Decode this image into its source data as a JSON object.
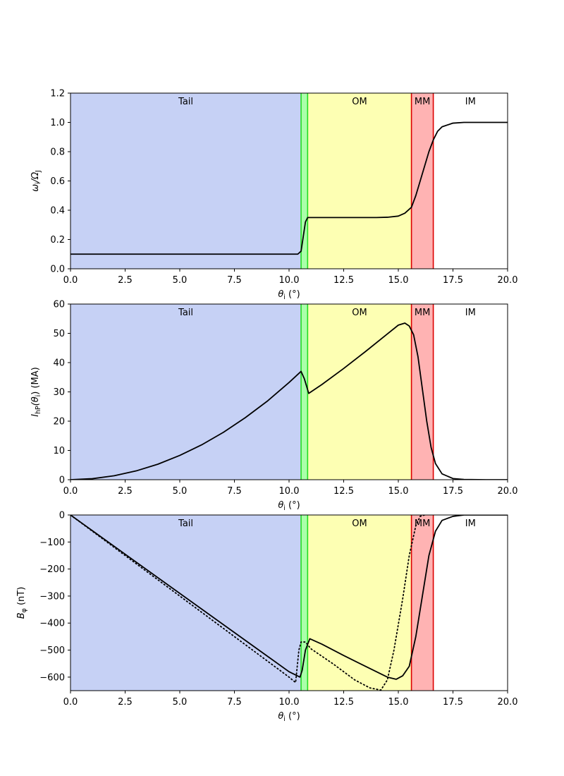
{
  "chart_data": [
    {
      "type": "line",
      "panel": "omega",
      "xlabel": "θ_i (°)",
      "ylabel": "ω_i/Ω_J",
      "xlim": [
        0,
        20
      ],
      "ylim": [
        0,
        1.2
      ],
      "xticks": [
        0,
        2.5,
        5,
        7.5,
        10,
        12.5,
        15,
        17.5,
        20
      ],
      "xtick_labels": [
        "0.0",
        "2.5",
        "5.0",
        "7.5",
        "10.0",
        "12.5",
        "15.0",
        "17.5",
        "20.0"
      ],
      "yticks": [
        0,
        0.2,
        0.4,
        0.6,
        0.8,
        1.0,
        1.2
      ],
      "ytick_labels": [
        "0.0",
        "0.2",
        "0.4",
        "0.6",
        "0.8",
        "1.0",
        "1.2"
      ],
      "regions": [
        {
          "label": "Tail",
          "from": 0,
          "to": 10.55,
          "color": "#c6d1f5"
        },
        {
          "label": "",
          "from": 10.55,
          "to": 10.85,
          "color": "#aaffaa"
        },
        {
          "label": "OM",
          "from": 10.85,
          "to": 15.6,
          "color": "#fdffb3"
        },
        {
          "label": "MM",
          "from": 15.6,
          "to": 16.6,
          "color": "#ffb3b3"
        },
        {
          "label": "IM",
          "from": 16.6,
          "to": 20,
          "color": "#ffffff"
        }
      ],
      "boundaries": [
        {
          "x": 10.55,
          "color": "#22dd22"
        },
        {
          "x": 10.85,
          "color": "#22dd22"
        },
        {
          "x": 15.6,
          "color": "#dd0000"
        },
        {
          "x": 16.6,
          "color": "#dd0000"
        }
      ],
      "series": [
        {
          "style": "solid",
          "x": [
            0,
            2.5,
            5,
            7.5,
            10,
            10.4,
            10.55,
            10.65,
            10.75,
            10.85,
            11,
            12,
            13,
            14,
            14.5,
            15,
            15.3,
            15.6,
            15.8,
            16,
            16.2,
            16.4,
            16.6,
            16.8,
            17,
            17.5,
            18,
            19,
            20
          ],
          "y": [
            0.1,
            0.1,
            0.1,
            0.1,
            0.1,
            0.1,
            0.12,
            0.22,
            0.32,
            0.35,
            0.35,
            0.35,
            0.35,
            0.35,
            0.352,
            0.36,
            0.38,
            0.42,
            0.5,
            0.6,
            0.7,
            0.8,
            0.88,
            0.94,
            0.97,
            0.995,
            1.0,
            1.0,
            1.0
          ]
        }
      ]
    },
    {
      "type": "line",
      "panel": "current",
      "xlabel": "θ_i (°)",
      "ylabel": "I_hP(θ_i) (MA)",
      "xlim": [
        0,
        20
      ],
      "ylim": [
        0,
        60
      ],
      "xticks": [
        0,
        2.5,
        5,
        7.5,
        10,
        12.5,
        15,
        17.5,
        20
      ],
      "xtick_labels": [
        "0.0",
        "2.5",
        "5.0",
        "7.5",
        "10.0",
        "12.5",
        "15.0",
        "17.5",
        "20.0"
      ],
      "yticks": [
        0,
        10,
        20,
        30,
        40,
        50,
        60
      ],
      "ytick_labels": [
        "0",
        "10",
        "20",
        "30",
        "40",
        "50",
        "60"
      ],
      "regions": [
        {
          "label": "Tail",
          "from": 0,
          "to": 10.55,
          "color": "#c6d1f5"
        },
        {
          "label": "",
          "from": 10.55,
          "to": 10.85,
          "color": "#aaffaa"
        },
        {
          "label": "OM",
          "from": 10.85,
          "to": 15.6,
          "color": "#fdffb3"
        },
        {
          "label": "MM",
          "from": 15.6,
          "to": 16.6,
          "color": "#ffb3b3"
        },
        {
          "label": "IM",
          "from": 16.6,
          "to": 20,
          "color": "#ffffff"
        }
      ],
      "boundaries": [
        {
          "x": 10.55,
          "color": "#22dd22"
        },
        {
          "x": 10.85,
          "color": "#22dd22"
        },
        {
          "x": 15.6,
          "color": "#dd0000"
        },
        {
          "x": 16.6,
          "color": "#dd0000"
        }
      ],
      "series": [
        {
          "style": "solid",
          "x": [
            0,
            1,
            2,
            3,
            4,
            5,
            6,
            7,
            8,
            9,
            10,
            10.55,
            10.7,
            10.9,
            11.5,
            12.5,
            13.5,
            14.5,
            15,
            15.3,
            15.5,
            15.7,
            15.9,
            16.1,
            16.3,
            16.5,
            16.7,
            17,
            17.5,
            18,
            19,
            20
          ],
          "y": [
            0,
            0.35,
            1.35,
            3,
            5.3,
            8.3,
            11.9,
            16.2,
            21.2,
            26.8,
            33.2,
            37,
            34.5,
            29.5,
            32.5,
            38,
            43.8,
            49.8,
            52.8,
            53.5,
            52.5,
            49.5,
            42,
            31,
            20,
            11,
            5.5,
            2,
            0.4,
            0.1,
            0,
            0
          ]
        }
      ]
    },
    {
      "type": "line",
      "panel": "bphi",
      "xlabel": "θ_i (°)",
      "ylabel": "B_φ (nT)",
      "xlim": [
        0,
        20
      ],
      "ylim": [
        -650,
        0
      ],
      "xticks": [
        0,
        2.5,
        5,
        7.5,
        10,
        12.5,
        15,
        17.5,
        20
      ],
      "xtick_labels": [
        "0.0",
        "2.5",
        "5.0",
        "7.5",
        "10.0",
        "12.5",
        "15.0",
        "17.5",
        "20.0"
      ],
      "yticks": [
        -600,
        -500,
        -400,
        -300,
        -200,
        -100,
        0
      ],
      "ytick_labels": [
        "−600",
        "−500",
        "−400",
        "−300",
        "−200",
        "−100",
        "0"
      ],
      "regions": [
        {
          "label": "Tail",
          "from": 0,
          "to": 10.55,
          "color": "#c6d1f5"
        },
        {
          "label": "",
          "from": 10.55,
          "to": 10.85,
          "color": "#aaffaa"
        },
        {
          "label": "OM",
          "from": 10.85,
          "to": 15.6,
          "color": "#fdffb3"
        },
        {
          "label": "MM",
          "from": 15.6,
          "to": 16.6,
          "color": "#ffb3b3"
        },
        {
          "label": "IM",
          "from": 16.6,
          "to": 20,
          "color": "#ffffff"
        }
      ],
      "boundaries": [
        {
          "x": 10.55,
          "color": "#22dd22"
        },
        {
          "x": 10.85,
          "color": "#22dd22"
        },
        {
          "x": 15.6,
          "color": "#dd0000"
        },
        {
          "x": 16.6,
          "color": "#dd0000"
        }
      ],
      "series": [
        {
          "style": "solid",
          "x": [
            0,
            2.5,
            5,
            7.5,
            10,
            10.5,
            10.6,
            10.75,
            10.95,
            11.5,
            12.5,
            13.5,
            14.5,
            14.9,
            15.2,
            15.5,
            15.8,
            16.1,
            16.4,
            16.7,
            17,
            17.5,
            18,
            19,
            20
          ],
          "y": [
            0,
            -145,
            -290,
            -435,
            -580,
            -600,
            -575,
            -500,
            -458,
            -478,
            -520,
            -560,
            -600,
            -608,
            -595,
            -560,
            -450,
            -300,
            -150,
            -60,
            -20,
            -5,
            0,
            0,
            0
          ],
          "color": "#000000"
        },
        {
          "style": "dotted",
          "x": [
            0,
            2.5,
            5,
            7.5,
            10,
            10.3,
            10.45,
            10.55,
            10.75,
            11,
            12,
            13,
            13.7,
            14.2,
            14.5,
            14.8,
            15.2,
            15.5,
            15.8,
            16,
            16.2
          ],
          "y": [
            0,
            -150,
            -300,
            -450,
            -600,
            -620,
            -500,
            -470,
            -470,
            -495,
            -550,
            -610,
            -640,
            -648,
            -610,
            -500,
            -310,
            -150,
            -40,
            -5,
            0
          ],
          "color": "#000000"
        }
      ]
    }
  ]
}
